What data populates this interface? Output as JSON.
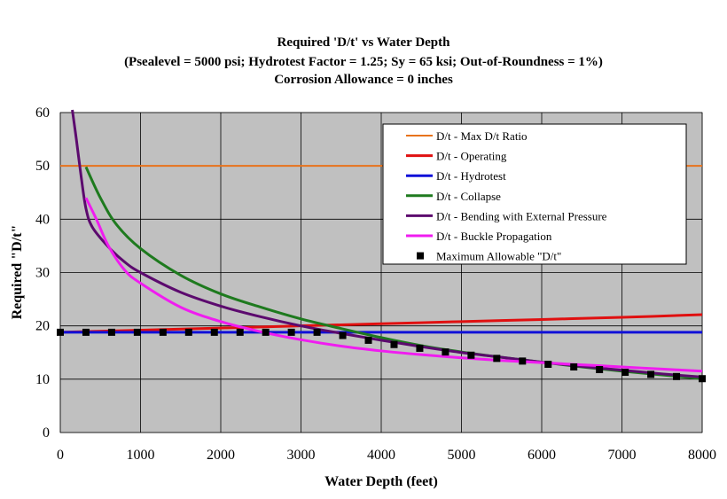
{
  "chart_data": {
    "type": "line",
    "title": "Required 'D/t' vs Water Depth",
    "subtitle": "(Psealevel = 5000 psi; Hydrotest Factor = 1.25; Sy = 65 ksi; Out-of-Roundness = 1%)",
    "subtitle2": "Corrosion Allowance = 0 inches",
    "xlabel": "Water Depth (feet)",
    "ylabel": "Required \"D/t\"",
    "xlim": [
      0,
      8000
    ],
    "ylim": [
      0,
      60
    ],
    "xticks": [
      0,
      1000,
      2000,
      3000,
      4000,
      5000,
      6000,
      7000,
      8000
    ],
    "yticks": [
      0,
      10,
      20,
      30,
      40,
      50,
      60
    ],
    "grid": true,
    "plot_background": "#c0c0c0",
    "legend_position": "top-right",
    "series": [
      {
        "name": "D/t - Max D/t Ratio",
        "color": "#e8731c",
        "width": 2,
        "points": [
          [
            0,
            50
          ],
          [
            8000,
            50
          ]
        ]
      },
      {
        "name": "D/t - Operating",
        "color": "#e01010",
        "width": 3,
        "points": [
          [
            0,
            18.8
          ],
          [
            1000,
            19.2
          ],
          [
            2000,
            19.6
          ],
          [
            3000,
            20.0
          ],
          [
            4000,
            20.4
          ],
          [
            5000,
            20.8
          ],
          [
            6000,
            21.2
          ],
          [
            7000,
            21.6
          ],
          [
            8000,
            22.1
          ]
        ]
      },
      {
        "name": "D/t - Hydrotest",
        "color": "#1010d8",
        "width": 3,
        "points": [
          [
            0,
            18.8
          ],
          [
            8000,
            18.8
          ]
        ]
      },
      {
        "name": "D/t - Collapse",
        "color": "#1e7a1e",
        "width": 3,
        "points": [
          [
            320,
            49.8
          ],
          [
            500,
            44
          ],
          [
            700,
            39
          ],
          [
            1000,
            34.5
          ],
          [
            1500,
            29.5
          ],
          [
            2000,
            26
          ],
          [
            2500,
            23.5
          ],
          [
            3000,
            21.3
          ],
          [
            3500,
            19.5
          ],
          [
            4000,
            17.8
          ],
          [
            4500,
            16.3
          ],
          [
            5000,
            15.1
          ],
          [
            5500,
            14.1
          ],
          [
            6000,
            13.2
          ],
          [
            6500,
            12.3
          ],
          [
            7000,
            11.5
          ],
          [
            7500,
            10.8
          ],
          [
            8000,
            10.1
          ]
        ]
      },
      {
        "name": "D/t - Bending with External Pressure",
        "color": "#5c0a6e",
        "width": 3,
        "points": [
          [
            150,
            60.5
          ],
          [
            200,
            55
          ],
          [
            260,
            48
          ],
          [
            320,
            42
          ],
          [
            400,
            38.5
          ],
          [
            600,
            34.8
          ],
          [
            800,
            32
          ],
          [
            1000,
            30
          ],
          [
            1500,
            26.3
          ],
          [
            2000,
            23.7
          ],
          [
            2500,
            21.7
          ],
          [
            3000,
            20
          ],
          [
            3500,
            18.6
          ],
          [
            4000,
            17.3
          ],
          [
            4500,
            16.1
          ],
          [
            5000,
            15
          ],
          [
            5500,
            14.1
          ],
          [
            6000,
            13.2
          ],
          [
            6500,
            12.4
          ],
          [
            7000,
            11.7
          ],
          [
            7500,
            11
          ],
          [
            8000,
            10.4
          ]
        ]
      },
      {
        "name": "D/t - Buckle Propagation",
        "color": "#f01cf0",
        "width": 3,
        "points": [
          [
            320,
            44
          ],
          [
            450,
            40
          ],
          [
            600,
            35
          ],
          [
            800,
            30.5
          ],
          [
            1000,
            28
          ],
          [
            1500,
            23.5
          ],
          [
            2000,
            20.8
          ],
          [
            2500,
            18.9
          ],
          [
            3000,
            17.4
          ],
          [
            3500,
            16.2
          ],
          [
            4000,
            15.3
          ],
          [
            4500,
            14.6
          ],
          [
            5000,
            14
          ],
          [
            5500,
            13.5
          ],
          [
            6000,
            13.1
          ],
          [
            6500,
            12.7
          ],
          [
            7000,
            12.3
          ],
          [
            7500,
            11.9
          ],
          [
            8000,
            11.5
          ]
        ]
      }
    ],
    "markers": {
      "name": "Maximum Allowable \"D/t\"",
      "color": "#000000",
      "x": [
        0,
        320,
        640,
        960,
        1280,
        1600,
        1920,
        2240,
        2560,
        2880,
        3200,
        3520,
        3840,
        4160,
        4480,
        4800,
        5120,
        5440,
        5760,
        6080,
        6400,
        6720,
        7040,
        7360,
        7680,
        8000
      ],
      "y": [
        18.8,
        18.8,
        18.8,
        18.8,
        18.8,
        18.8,
        18.8,
        18.8,
        18.8,
        18.8,
        18.8,
        18.2,
        17.3,
        16.5,
        15.8,
        15.1,
        14.5,
        13.9,
        13.4,
        12.8,
        12.3,
        11.8,
        11.3,
        10.9,
        10.5,
        10.1
      ]
    }
  }
}
